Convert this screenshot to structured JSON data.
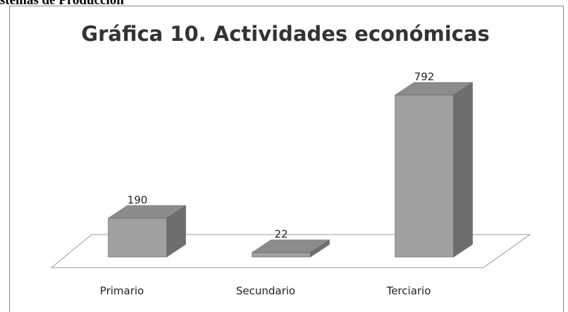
{
  "header": {
    "text": "Sistemas de Producción"
  },
  "chart_data": {
    "type": "bar3d",
    "title": "Gráfica 10. Actividades económicas",
    "categories": [
      "Primario",
      "Secundario",
      "Terciario"
    ],
    "values": [
      190,
      22,
      792
    ],
    "color": "#a0a0a0"
  }
}
